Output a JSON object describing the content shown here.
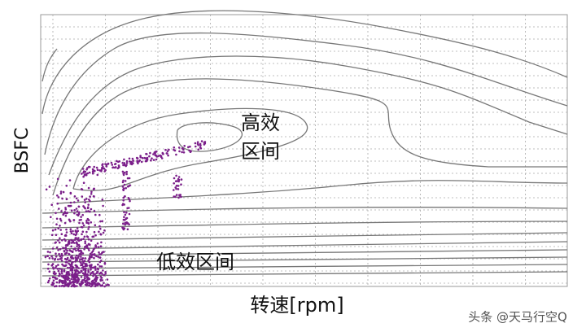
{
  "axes": {
    "y_label": "BSFC",
    "x_label": "转速[rpm]"
  },
  "annotations": {
    "high": [
      "高效",
      "区间"
    ],
    "low": "低效区间"
  },
  "watermark": "头条 @天马行空Q"
}
